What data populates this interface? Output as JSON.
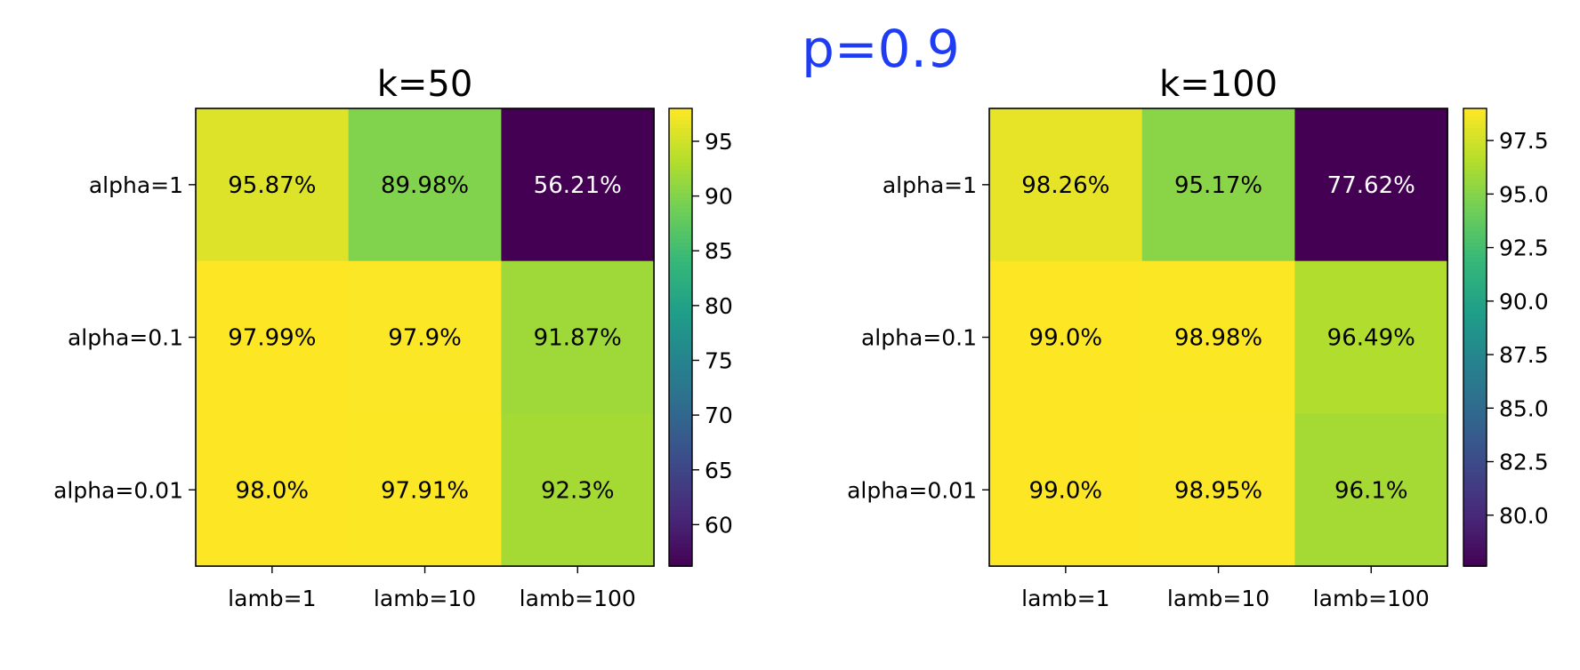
{
  "suptitle": "p=0.9",
  "colors": {
    "suptitle": "#1f3cf5",
    "frame": "#000000"
  },
  "chart_data": [
    {
      "type": "heatmap",
      "title": "k=50",
      "rows": [
        "alpha=1",
        "alpha=0.1",
        "alpha=0.01"
      ],
      "columns": [
        "lamb=1",
        "lamb=10",
        "lamb=100"
      ],
      "values": [
        [
          95.87,
          89.98,
          56.21
        ],
        [
          97.99,
          97.9,
          91.87
        ],
        [
          98.0,
          97.91,
          92.3
        ]
      ],
      "labels": [
        [
          "95.87%",
          "89.98%",
          "56.21%"
        ],
        [
          "97.99%",
          "97.9%",
          "91.87%"
        ],
        [
          "98.0%",
          "97.91%",
          "92.3%"
        ]
      ],
      "colormap": "viridis",
      "colorbar": {
        "min": 56.21,
        "max": 98.0,
        "ticks": [
          60,
          65,
          70,
          75,
          80,
          85,
          90,
          95
        ]
      }
    },
    {
      "type": "heatmap",
      "title": "k=100",
      "rows": [
        "alpha=1",
        "alpha=0.1",
        "alpha=0.01"
      ],
      "columns": [
        "lamb=1",
        "lamb=10",
        "lamb=100"
      ],
      "values": [
        [
          98.26,
          95.17,
          77.62
        ],
        [
          99.0,
          98.98,
          96.49
        ],
        [
          99.0,
          98.95,
          96.1
        ]
      ],
      "labels": [
        [
          "98.26%",
          "95.17%",
          "77.62%"
        ],
        [
          "99.0%",
          "98.98%",
          "96.49%"
        ],
        [
          "99.0%",
          "98.95%",
          "96.1%"
        ]
      ],
      "colormap": "viridis",
      "colorbar": {
        "min": 77.62,
        "max": 99.0,
        "ticks": [
          80.0,
          82.5,
          85.0,
          87.5,
          90.0,
          92.5,
          95.0,
          97.5
        ]
      }
    }
  ]
}
